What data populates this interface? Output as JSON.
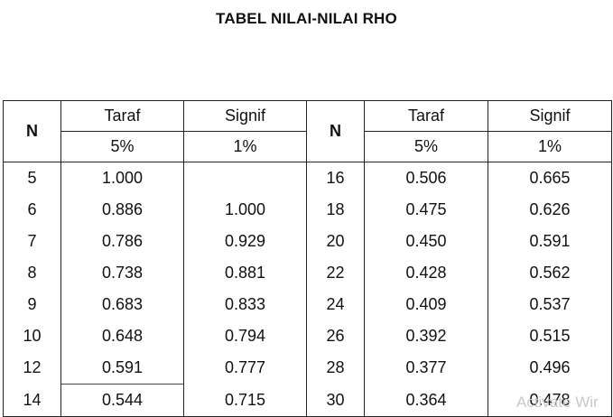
{
  "title": "TABEL NILAI-NILAI RHO",
  "headers": {
    "n": "N",
    "taraf": "Taraf",
    "signif": "Signif",
    "pct5": "5%",
    "pct1": "1%"
  },
  "left_rows": [
    {
      "n": "5",
      "p5": "1.000",
      "p1": ""
    },
    {
      "n": "6",
      "p5": "0.886",
      "p1": "1.000"
    },
    {
      "n": "7",
      "p5": "0.786",
      "p1": "0.929"
    },
    {
      "n": "8",
      "p5": "0.738",
      "p1": "0.881"
    },
    {
      "n": "9",
      "p5": "0.683",
      "p1": "0.833"
    },
    {
      "n": "10",
      "p5": "0.648",
      "p1": "0.794"
    },
    {
      "n": "12",
      "p5": "0.591",
      "p1": "0.777"
    },
    {
      "n": "14",
      "p5": "0.544",
      "p1": "0.715"
    }
  ],
  "right_rows": [
    {
      "n": "16",
      "p5": "0.506",
      "p1": "0.665"
    },
    {
      "n": "18",
      "p5": "0.475",
      "p1": "0.626"
    },
    {
      "n": "20",
      "p5": "0.450",
      "p1": "0.591"
    },
    {
      "n": "22",
      "p5": "0.428",
      "p1": "0.562"
    },
    {
      "n": "24",
      "p5": "0.409",
      "p1": "0.537"
    },
    {
      "n": "26",
      "p5": "0.392",
      "p1": "0.515"
    },
    {
      "n": "28",
      "p5": "0.377",
      "p1": "0.496"
    },
    {
      "n": "30",
      "p5": "0.364",
      "p1": "0.478"
    }
  ],
  "watermark": "Activate Wir"
}
